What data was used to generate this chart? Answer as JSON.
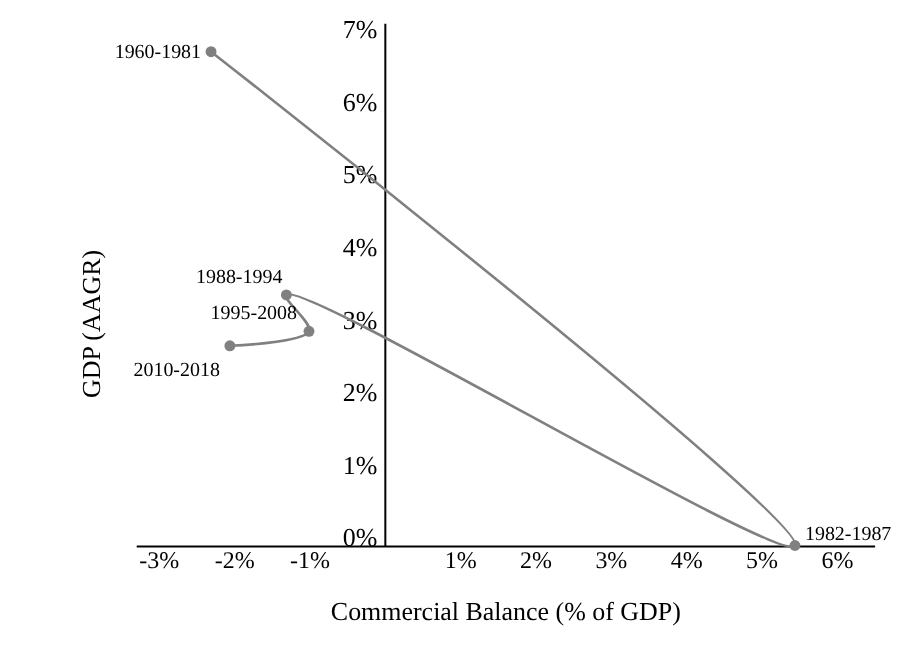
{
  "chart_data": {
    "type": "line",
    "xlabel": "Commercial Balance (% of GDP)",
    "ylabel": "GDP (AAGR)",
    "x": [
      -2.3,
      5.45,
      -1.3,
      -1.0,
      -2.05
    ],
    "series": [
      {
        "color": "#808080",
        "values": [
          6.8,
          0.0,
          3.45,
          2.95,
          2.75
        ]
      }
    ],
    "marker": "circle",
    "grid": false,
    "xlim": [
      -3.3,
      6.5
    ],
    "ylim": [
      0,
      7.2
    ],
    "xticks": [
      {
        "value": -3,
        "label": "-3%"
      },
      {
        "value": -2,
        "label": "-2%"
      },
      {
        "value": -1,
        "label": "-1%"
      },
      {
        "value": 1,
        "label": "1%"
      },
      {
        "value": 2,
        "label": "2%"
      },
      {
        "value": 3,
        "label": "3%"
      },
      {
        "value": 4,
        "label": "4%"
      },
      {
        "value": 5,
        "label": "5%"
      },
      {
        "value": 6,
        "label": "6%"
      }
    ],
    "yticks": [
      {
        "value": 0,
        "label": "0%"
      },
      {
        "value": 1,
        "label": "1%"
      },
      {
        "value": 2,
        "label": "2%"
      },
      {
        "value": 3,
        "label": "3%"
      },
      {
        "value": 4,
        "label": "4%"
      },
      {
        "value": 5,
        "label": "5%"
      },
      {
        "value": 6,
        "label": "6%"
      },
      {
        "value": 7,
        "label": "7%"
      }
    ],
    "annotations": [
      {
        "text": "1960-1981",
        "x": -2.3,
        "y": 6.8
      },
      {
        "text": "1982-1987",
        "x": 5.45,
        "y": 0.0
      },
      {
        "text": "1988-1994",
        "x": -1.3,
        "y": 3.45
      },
      {
        "text": "1995-2008",
        "x": -1.0,
        "y": 2.95
      },
      {
        "text": "2010-2018",
        "x": -2.05,
        "y": 2.75
      }
    ]
  }
}
